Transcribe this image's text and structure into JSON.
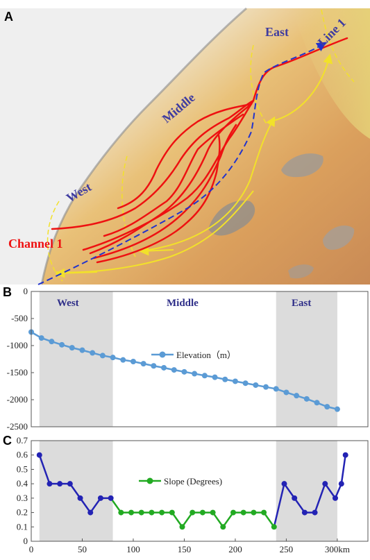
{
  "panels": {
    "a": {
      "letter": "A"
    },
    "b": {
      "letter": "B"
    },
    "c": {
      "letter": "C"
    }
  },
  "map": {
    "labels": {
      "east": "East",
      "middle": "Middle",
      "west": "West",
      "line": "Line 1",
      "channel": "Channel 1"
    },
    "colors": {
      "channel": "#ee1111",
      "line": "#2233cc",
      "arrows": "#f2e12a",
      "boundaries": "#f2e12a"
    }
  },
  "regions": {
    "west": "West",
    "middle": "Middle",
    "east": "East"
  },
  "x_ticks": [
    "0",
    "50",
    "100",
    "150",
    "200",
    "250",
    "300km"
  ],
  "colors": {
    "shade": "#dcdcdc",
    "elevation": "#5b9bd5",
    "slope_steep": "#2323b4",
    "slope_flat": "#22aa22"
  },
  "chart_data": [
    {
      "type": "line",
      "panel": "B",
      "xlim": [
        0,
        330
      ],
      "ylim": [
        -2500,
        0
      ],
      "y_ticks": [
        "0",
        "-500",
        "-1000",
        "-1500",
        "-2000",
        "-2500"
      ],
      "x": [
        0,
        10,
        20,
        30,
        40,
        50,
        60,
        70,
        80,
        90,
        100,
        110,
        120,
        130,
        140,
        150,
        160,
        170,
        180,
        190,
        200,
        210,
        220,
        230,
        240,
        250,
        260,
        270,
        280,
        290,
        300
      ],
      "shaded_ranges": [
        [
          8,
          80
        ],
        [
          240,
          300
        ]
      ],
      "series": [
        {
          "name": "Elevation（m）",
          "values": [
            -750,
            -860,
            -925,
            -985,
            -1040,
            -1085,
            -1135,
            -1185,
            -1220,
            -1265,
            -1295,
            -1335,
            -1375,
            -1410,
            -1450,
            -1485,
            -1520,
            -1555,
            -1585,
            -1625,
            -1660,
            -1695,
            -1730,
            -1765,
            -1800,
            -1865,
            -1925,
            -1985,
            -2055,
            -2130,
            -2175
          ]
        }
      ]
    },
    {
      "type": "line",
      "panel": "C",
      "xlim": [
        0,
        330
      ],
      "ylim": [
        0,
        0.7
      ],
      "y_ticks": [
        "0.7",
        "0.6",
        "0.5",
        "0.4",
        "0.3",
        "0.2",
        "0.1",
        "0"
      ],
      "shaded_ranges": [
        [
          8,
          80
        ],
        [
          240,
          300
        ]
      ],
      "series": [
        {
          "name": "Slope (Degrees)",
          "x": [
            8,
            18,
            28,
            38,
            48,
            58,
            68,
            78,
            88,
            98,
            108,
            118,
            128,
            138,
            148,
            158,
            168,
            178,
            188,
            198,
            208,
            218,
            228,
            238,
            248,
            258,
            268,
            278,
            288,
            298,
            304,
            308
          ],
          "values": [
            0.6,
            0.4,
            0.4,
            0.4,
            0.3,
            0.2,
            0.3,
            0.3,
            0.2,
            0.2,
            0.2,
            0.2,
            0.2,
            0.2,
            0.1,
            0.2,
            0.2,
            0.2,
            0.1,
            0.2,
            0.2,
            0.2,
            0.2,
            0.1,
            0.4,
            0.3,
            0.2,
            0.2,
            0.4,
            0.3,
            0.4,
            0.6
          ]
        }
      ]
    }
  ]
}
